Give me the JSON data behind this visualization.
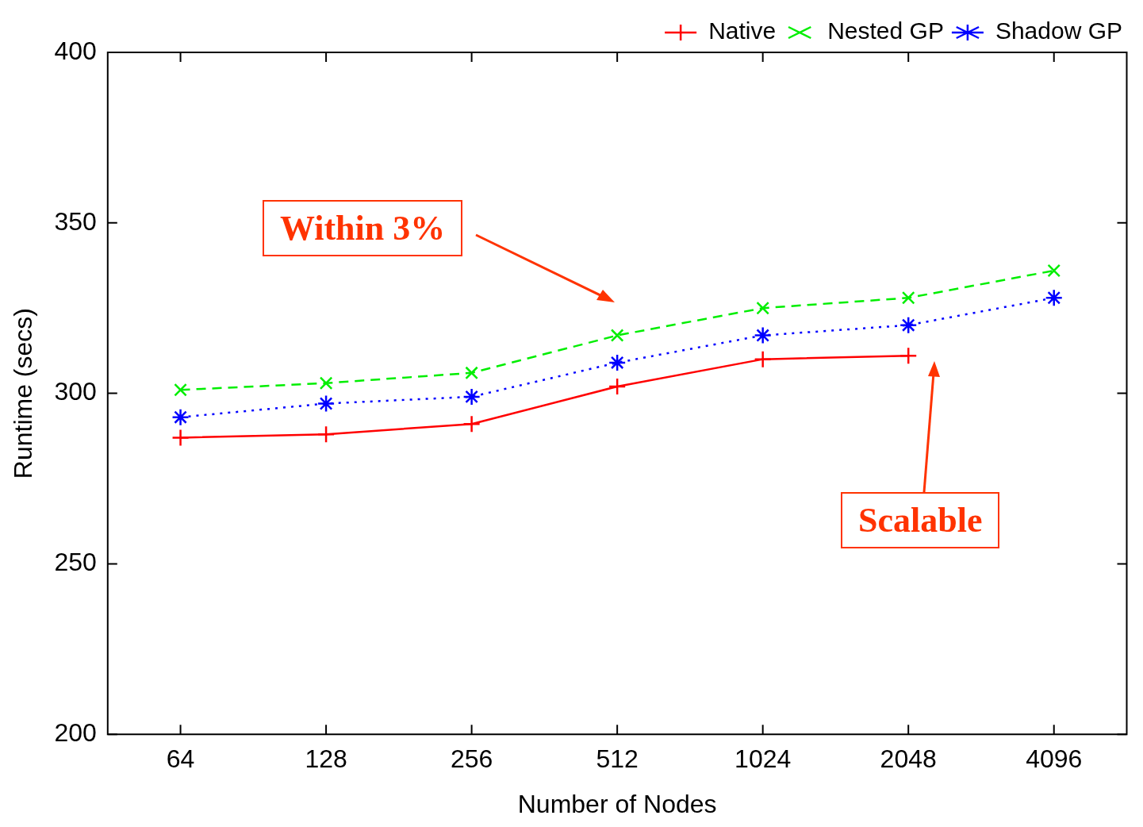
{
  "chart_data": {
    "type": "line",
    "xlabel": "Number of Nodes",
    "ylabel": "Runtime (secs)",
    "categories": [
      "64",
      "128",
      "256",
      "512",
      "1024",
      "2048",
      "4096"
    ],
    "series": [
      {
        "name": "Native",
        "color": "#ff0000",
        "line_style": "solid",
        "values": [
          287,
          288,
          291,
          302,
          310,
          311,
          null
        ]
      },
      {
        "name": "Nested GP",
        "color": "#00ee00",
        "line_style": "dashed",
        "values": [
          301,
          303,
          306,
          317,
          325,
          328,
          336
        ]
      },
      {
        "name": "Shadow GP",
        "color": "#0000ff",
        "line_style": "dotted",
        "values": [
          293,
          297,
          299,
          309,
          317,
          320,
          328
        ]
      }
    ],
    "ylim": [
      200,
      400
    ],
    "yticks": [
      200,
      250,
      300,
      350,
      400
    ],
    "grid": false,
    "marker": "cross",
    "legend": "top right",
    "annotations": [
      "Within 3%",
      "Scalable"
    ]
  }
}
